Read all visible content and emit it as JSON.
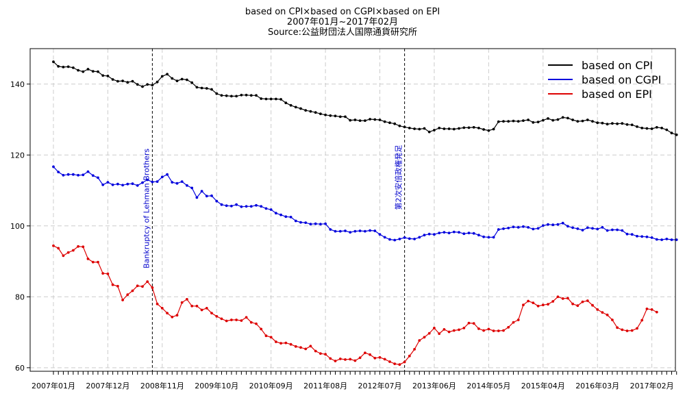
{
  "chart_data": {
    "type": "line",
    "title": "based on CPI×based on CGPI×based on EPI",
    "subtitle": "2007年01月~2017年02月",
    "source": "Source:公益財団法人国際通貨研究所",
    "xlabel": "",
    "ylabel": "",
    "ylim": [
      59,
      150
    ],
    "yticks": [
      60,
      80,
      100,
      120,
      140
    ],
    "grid": true,
    "legend_position": "top-right",
    "x_tick_labels": [
      "2007年01月",
      "2007年12月",
      "2008年11月",
      "2009年10月",
      "2010年09月",
      "2011年08月",
      "2012年07月",
      "2013年06月",
      "2014年05月",
      "2015年04月",
      "2016年03月",
      "2017年02月"
    ],
    "x_tick_index": [
      0,
      11,
      22,
      33,
      44,
      55,
      66,
      77,
      88,
      99,
      110,
      121
    ],
    "annotations": [
      {
        "index": 20,
        "label": "Bankruptcy of Lehman Brothers"
      },
      {
        "index": 71,
        "label": "第2次安倍政権発足"
      }
    ],
    "series": [
      {
        "name": "based on CPI",
        "color": "#000000",
        "values": [
          146.3,
          145.0,
          144.8,
          144.9,
          144.6,
          143.9,
          143.5,
          144.2,
          143.6,
          143.5,
          142.4,
          142.3,
          141.3,
          140.8,
          140.9,
          140.5,
          140.8,
          139.9,
          139.3,
          139.9,
          139.7,
          140.6,
          142.2,
          142.8,
          141.6,
          140.9,
          141.4,
          141.2,
          140.4,
          139.1,
          138.9,
          138.8,
          138.5,
          137.3,
          136.8,
          136.7,
          136.6,
          136.6,
          136.9,
          136.9,
          136.8,
          136.8,
          135.9,
          135.8,
          135.8,
          135.8,
          135.7,
          134.7,
          134.0,
          133.5,
          133.1,
          132.6,
          132.3,
          132.0,
          131.6,
          131.3,
          131.1,
          131.0,
          130.8,
          130.8,
          129.8,
          129.9,
          129.7,
          129.7,
          130.1,
          130.0,
          129.9,
          129.4,
          129.1,
          128.8,
          128.2,
          127.9,
          127.6,
          127.4,
          127.3,
          127.5,
          126.5,
          127.0,
          127.6,
          127.4,
          127.4,
          127.3,
          127.5,
          127.7,
          127.7,
          127.8,
          127.6,
          127.2,
          126.9,
          127.3,
          129.4,
          129.5,
          129.5,
          129.6,
          129.5,
          129.7,
          129.9,
          129.2,
          129.3,
          129.8,
          130.3,
          129.8,
          130.0,
          130.6,
          130.4,
          129.9,
          129.5,
          129.6,
          129.9,
          129.5,
          129.1,
          129.0,
          128.7,
          128.9,
          128.8,
          128.9,
          128.6,
          128.5,
          128.0,
          127.6,
          127.5,
          127.4,
          127.8,
          127.6,
          127.1,
          126.2,
          125.7
        ]
      },
      {
        "name": "based on CGPI",
        "color": "#0000dd",
        "values": [
          116.7,
          115.2,
          114.3,
          114.5,
          114.5,
          114.3,
          114.4,
          115.3,
          114.2,
          113.6,
          111.6,
          112.3,
          111.6,
          111.8,
          111.5,
          111.8,
          111.9,
          111.4,
          112.2,
          113.0,
          112.4,
          112.5,
          113.8,
          114.5,
          112.3,
          112.0,
          112.5,
          111.4,
          110.7,
          108.0,
          109.8,
          108.4,
          108.5,
          107.0,
          106.0,
          105.7,
          105.6,
          106.0,
          105.4,
          105.5,
          105.5,
          105.8,
          105.5,
          104.9,
          104.6,
          103.6,
          103.1,
          102.6,
          102.5,
          101.4,
          101.0,
          100.9,
          100.5,
          100.6,
          100.5,
          100.6,
          99.0,
          98.5,
          98.5,
          98.6,
          98.2,
          98.5,
          98.6,
          98.5,
          98.7,
          98.6,
          97.6,
          96.8,
          96.2,
          96.0,
          96.3,
          96.7,
          96.4,
          96.3,
          96.8,
          97.4,
          97.7,
          97.6,
          98.0,
          98.2,
          98.0,
          98.3,
          98.2,
          97.8,
          98.0,
          97.9,
          97.4,
          96.9,
          96.8,
          96.8,
          99.0,
          99.2,
          99.4,
          99.7,
          99.6,
          99.8,
          99.6,
          99.1,
          99.3,
          100.1,
          100.4,
          100.3,
          100.4,
          100.8,
          99.9,
          99.5,
          99.2,
          98.8,
          99.5,
          99.3,
          99.1,
          99.6,
          98.7,
          98.9,
          98.9,
          98.7,
          97.7,
          97.6,
          97.1,
          97.0,
          96.9,
          96.7,
          96.2,
          96.1,
          96.3,
          96.1,
          96.1
        ]
      },
      {
        "name": "based on EPI",
        "color": "#dd0000",
        "values": [
          94.4,
          93.7,
          91.6,
          92.5,
          93.1,
          94.2,
          94.1,
          90.7,
          89.8,
          89.8,
          86.6,
          86.5,
          83.4,
          83.0,
          79.1,
          80.6,
          81.7,
          83.1,
          82.9,
          84.3,
          82.6,
          78.0,
          76.8,
          75.4,
          74.3,
          74.8,
          78.4,
          79.3,
          77.4,
          77.4,
          76.3,
          76.8,
          75.4,
          74.5,
          73.8,
          73.2,
          73.5,
          73.5,
          73.3,
          74.2,
          72.8,
          72.4,
          70.9,
          69.0,
          68.6,
          67.3,
          66.9,
          67.0,
          66.6,
          66.0,
          65.7,
          65.3,
          66.1,
          64.7,
          64.0,
          63.8,
          62.6,
          61.9,
          62.5,
          62.3,
          62.4,
          62.0,
          62.8,
          64.2,
          63.7,
          62.7,
          62.9,
          62.4,
          61.7,
          61.1,
          60.9,
          61.6,
          63.3,
          65.2,
          67.7,
          68.6,
          69.7,
          71.2,
          69.6,
          70.8,
          70.1,
          70.5,
          70.7,
          71.2,
          72.6,
          72.5,
          71.0,
          70.5,
          70.9,
          70.4,
          70.4,
          70.5,
          71.4,
          72.8,
          73.5,
          77.7,
          78.8,
          78.3,
          77.4,
          77.7,
          77.9,
          78.7,
          80.0,
          79.5,
          79.6,
          78.0,
          77.5,
          78.6,
          78.9,
          77.6,
          76.4,
          75.6,
          74.9,
          73.5,
          71.3,
          70.7,
          70.4,
          70.5,
          71.1,
          73.4,
          76.6,
          76.4,
          75.7
        ]
      }
    ]
  }
}
